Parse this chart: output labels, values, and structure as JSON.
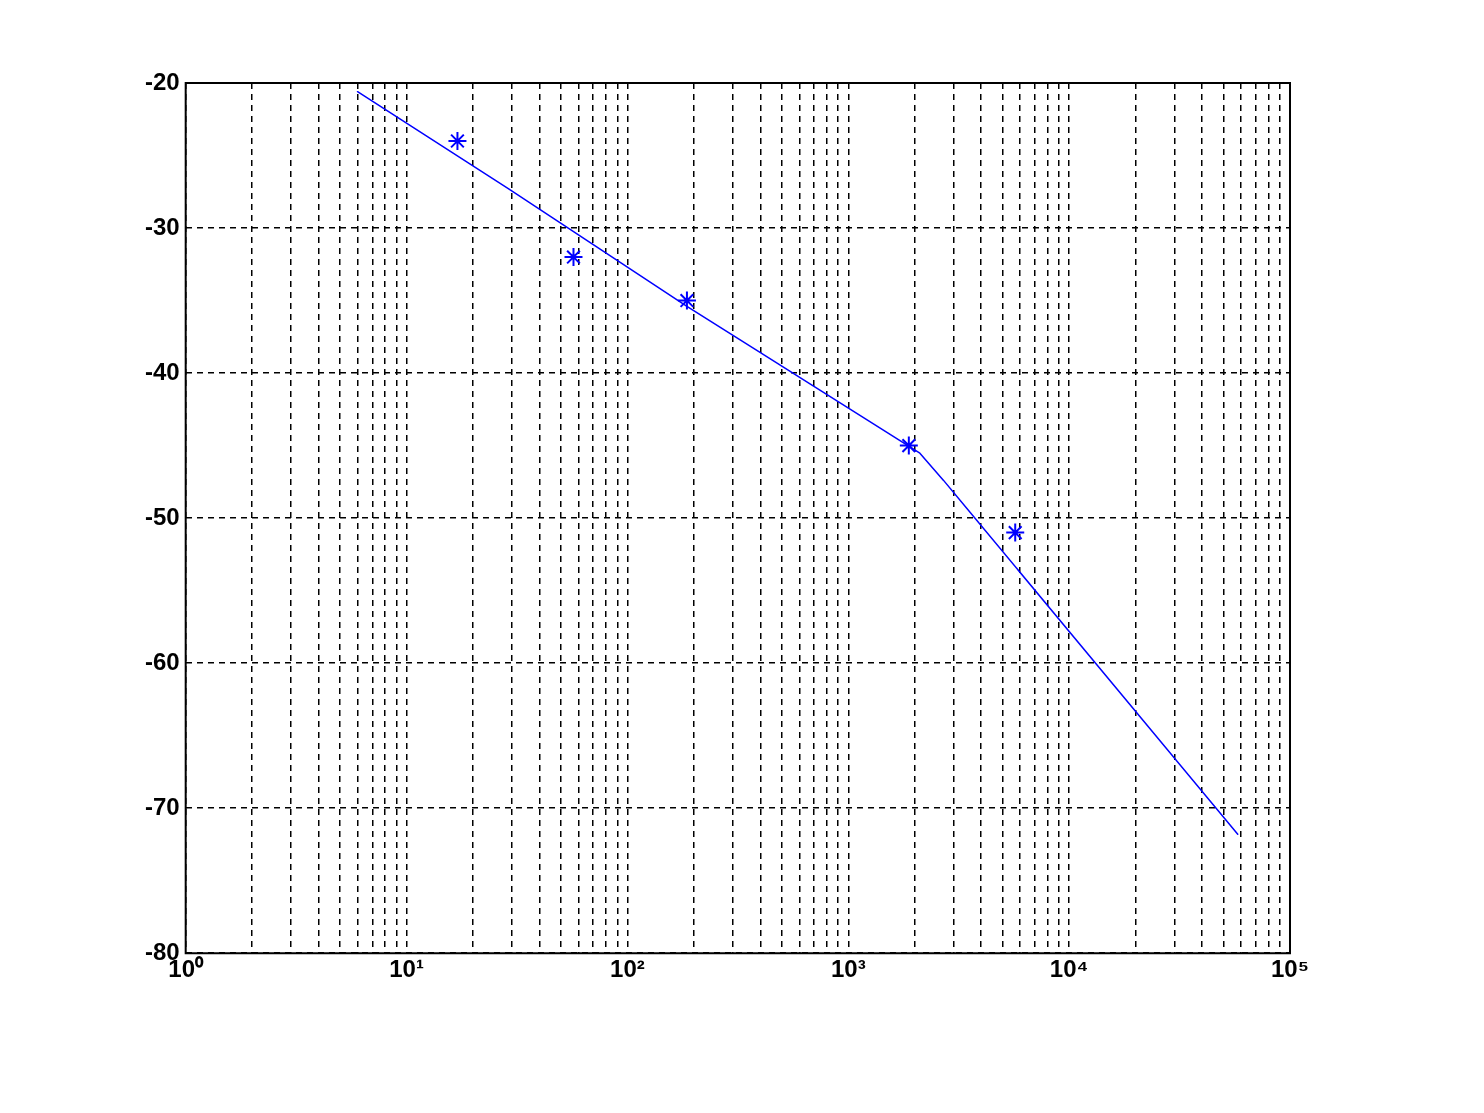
{
  "chart_data": {
    "type": "scatter",
    "log": "x",
    "grid": true,
    "legend": false,
    "xlim": [
      1,
      100000
    ],
    "xticks": [
      {
        "value": 1,
        "label": "10⁰"
      },
      {
        "value": 2,
        "label": null
      },
      {
        "value": 3,
        "label": null
      },
      {
        "value": 4,
        "label": null
      },
      {
        "value": 5,
        "label": null
      },
      {
        "value": 6,
        "label": null
      },
      {
        "value": 7,
        "label": null
      },
      {
        "value": 8,
        "label": null
      },
      {
        "value": 9,
        "label": null
      },
      {
        "value": 10,
        "label": "10¹"
      },
      {
        "value": 20,
        "label": null
      },
      {
        "value": 30,
        "label": null
      },
      {
        "value": 40,
        "label": null
      },
      {
        "value": 50,
        "label": null
      },
      {
        "value": 60,
        "label": null
      },
      {
        "value": 70,
        "label": null
      },
      {
        "value": 80,
        "label": null
      },
      {
        "value": 90,
        "label": null
      },
      {
        "value": 100,
        "label": "10²"
      },
      {
        "value": 200,
        "label": null
      },
      {
        "value": 300,
        "label": null
      },
      {
        "value": 400,
        "label": null
      },
      {
        "value": 500,
        "label": null
      },
      {
        "value": 600,
        "label": null
      },
      {
        "value": 700,
        "label": null
      },
      {
        "value": 800,
        "label": null
      },
      {
        "value": 900,
        "label": null
      },
      {
        "value": 1000,
        "label": "10³"
      },
      {
        "value": 2000,
        "label": null
      },
      {
        "value": 3000,
        "label": null
      },
      {
        "value": 4000,
        "label": null
      },
      {
        "value": 5000,
        "label": null
      },
      {
        "value": 6000,
        "label": null
      },
      {
        "value": 7000,
        "label": null
      },
      {
        "value": 8000,
        "label": null
      },
      {
        "value": 9000,
        "label": null
      },
      {
        "value": 10000,
        "label": "10⁴"
      },
      {
        "value": 20000,
        "label": null
      },
      {
        "value": 30000,
        "label": null
      },
      {
        "value": 40000,
        "label": null
      },
      {
        "value": 50000,
        "label": null
      },
      {
        "value": 60000,
        "label": null
      },
      {
        "value": 70000,
        "label": null
      },
      {
        "value": 80000,
        "label": null
      },
      {
        "value": 90000,
        "label": null
      },
      {
        "value": 100000,
        "label": "10⁵"
      }
    ],
    "ylim": [
      -80,
      -20
    ],
    "yticks": [
      -80,
      -70,
      -60,
      -50,
      -40,
      -30,
      -20
    ],
    "series": [
      {
        "type": "scatter",
        "marker": "cross",
        "color": "#0000ff",
        "x": [
          17,
          57,
          186,
          1880,
          5700
        ],
        "values": [
          -24,
          -32,
          -35,
          -45,
          -51
        ]
      },
      {
        "type": "line",
        "marker": "none",
        "line_style": "solid",
        "color": "#0000ff",
        "x": [
          6,
          29,
          186,
          2100,
          2700,
          58000
        ],
        "values": [
          -20.6,
          -27.3,
          -35.4,
          -45.5,
          -47.4,
          -71.8
        ]
      }
    ]
  }
}
